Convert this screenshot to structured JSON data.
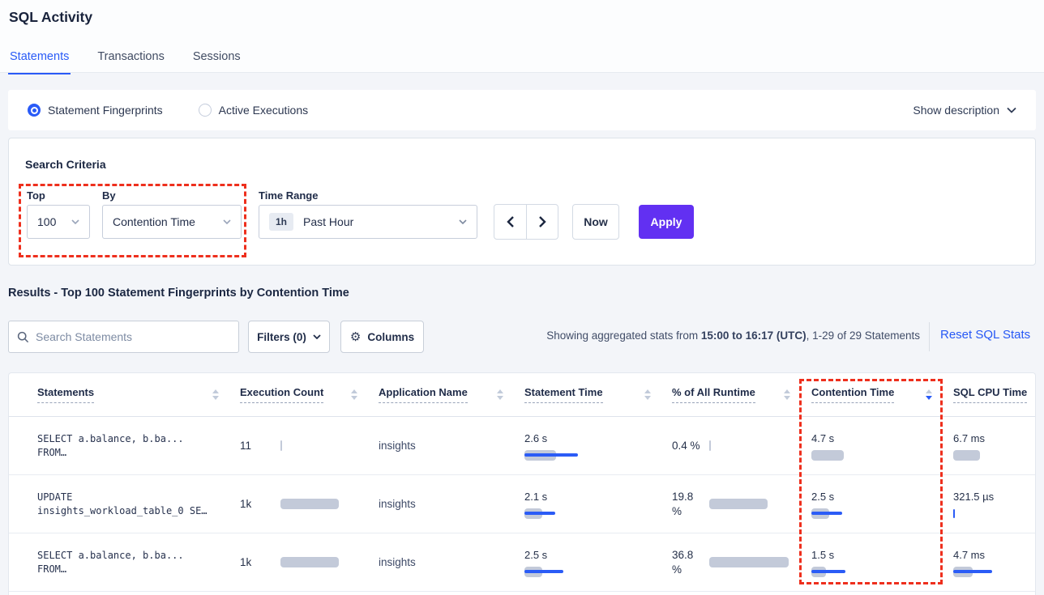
{
  "colors": {
    "accent_blue": "#2a5bf7",
    "apply_purple": "#6230f2",
    "annotation_red": "#ee2f1d",
    "bar_gray": "#c3cad9",
    "bar_blue": "#2b5cf6",
    "link_blue": "#2658f5"
  },
  "header": {
    "title": "SQL Activity"
  },
  "tabs": [
    {
      "label": "Statements",
      "active": true
    },
    {
      "label": "Transactions",
      "active": false
    },
    {
      "label": "Sessions",
      "active": false
    }
  ],
  "view_toggle": {
    "options": [
      {
        "label": "Statement Fingerprints",
        "selected": true
      },
      {
        "label": "Active Executions",
        "selected": false
      }
    ],
    "show_description_label": "Show description"
  },
  "search_criteria": {
    "heading": "Search Criteria",
    "top_label": "Top",
    "top_value": "100",
    "by_label": "By",
    "by_value": "Contention Time",
    "time_range_label": "Time Range",
    "time_range_badge": "1h",
    "time_range_value": "Past Hour",
    "now_label": "Now",
    "apply_label": "Apply"
  },
  "results": {
    "heading": "Results - Top 100 Statement Fingerprints by Contention Time",
    "search_placeholder": "Search Statements",
    "filters_label": "Filters (0)",
    "columns_label": "Columns",
    "stats_prefix": "Showing aggregated stats from ",
    "stats_bold": "15:00 to 16:17 (UTC)",
    "stats_suffix": ", 1-29 of 29 Statements",
    "reset_label": "Reset SQL Stats"
  },
  "table": {
    "columns": [
      "Statements",
      "Execution Count",
      "Application Name",
      "Statement Time",
      "% of All Runtime",
      "Contention Time",
      "SQL CPU Time"
    ],
    "sorted_column": "Contention Time",
    "sort_direction": "desc",
    "rows": [
      {
        "statement": [
          "SELECT a.balance, b.ba...",
          "FROM…"
        ],
        "execution_count": {
          "value": "11",
          "bar": 2
        },
        "application": "insights",
        "statement_time": {
          "value": "2.6 s",
          "gray": 39,
          "blue": 66
        },
        "runtime_pct": {
          "value": "0.4 %",
          "gray": 2,
          "blue": 0
        },
        "contention_time": {
          "value": "4.7 s",
          "gray": 40,
          "blue": 0
        },
        "sql_cpu": {
          "value": "6.7 ms",
          "gray": 33,
          "blue": 0
        }
      },
      {
        "statement": [
          "UPDATE",
          "insights_workload_table_0 SE…"
        ],
        "execution_count": {
          "value": "1k",
          "bar": 72
        },
        "application": "insights",
        "statement_time": {
          "value": "2.1 s",
          "gray": 22,
          "blue": 38
        },
        "runtime_pct": {
          "value": "19.8 %",
          "gray": 72,
          "blue": 0
        },
        "contention_time": {
          "value": "2.5 s",
          "gray": 22,
          "blue": 38
        },
        "sql_cpu": {
          "value": "321.5 µs",
          "gray": 0,
          "blue": 0,
          "tick": true
        }
      },
      {
        "statement": [
          "SELECT a.balance, b.ba...",
          "FROM…"
        ],
        "execution_count": {
          "value": "1k",
          "bar": 72
        },
        "application": "insights",
        "statement_time": {
          "value": "2.5 s",
          "gray": 22,
          "blue": 48
        },
        "runtime_pct": {
          "value": "36.8 %",
          "gray": 98,
          "blue": 0
        },
        "contention_time": {
          "value": "1.5 s",
          "gray": 18,
          "blue": 42
        },
        "sql_cpu": {
          "value": "4.7 ms",
          "gray": 24,
          "blue": 48
        }
      }
    ]
  }
}
